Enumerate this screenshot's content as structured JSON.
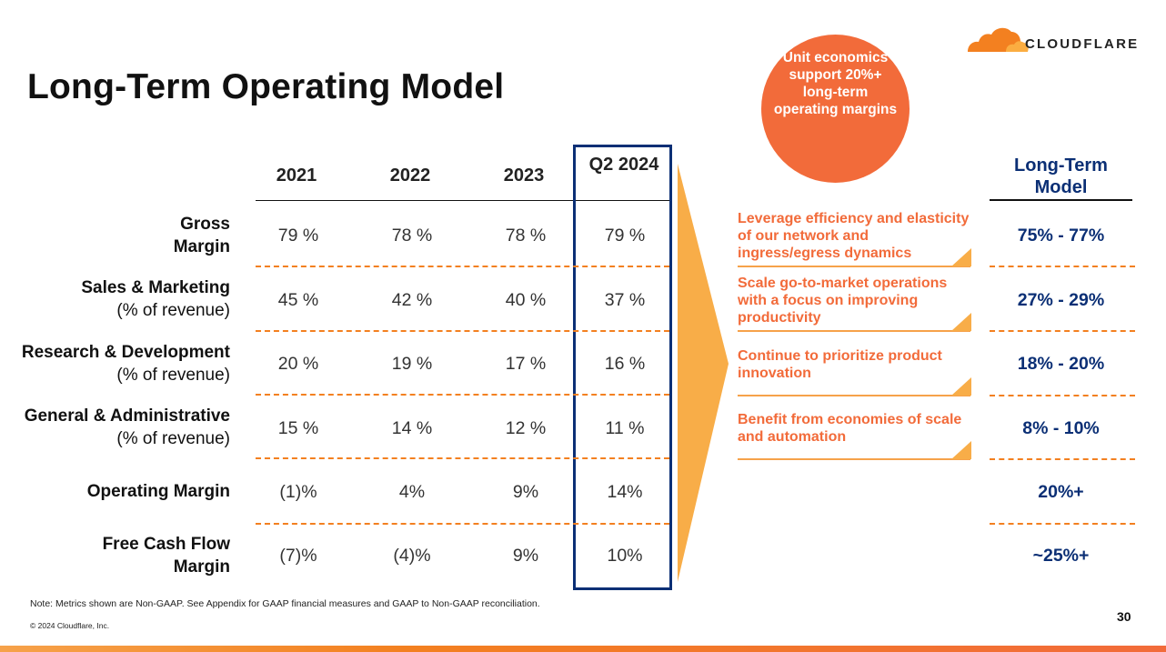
{
  "title": "Long-Term Operating Model",
  "logo": {
    "text": "CLOUDFLARE",
    "icon": "cloud-icon"
  },
  "callout": "Unit economics support 20%+ long-term operating margins",
  "table": {
    "columns": [
      "2021",
      "2022",
      "2023",
      "Q2 2024"
    ],
    "rows": [
      {
        "label": "Gross Margin",
        "sublabel": "",
        "values": [
          "79 %",
          "78 %",
          "78 %",
          "79 %"
        ],
        "long_term": "75% - 77%"
      },
      {
        "label": "Sales & Marketing",
        "sublabel": "(% of revenue)",
        "values": [
          "45 %",
          "42 %",
          "40 %",
          "37 %"
        ],
        "long_term": "27% - 29%"
      },
      {
        "label": "Research & Development",
        "sublabel": "(% of revenue)",
        "values": [
          "20 %",
          "19 %",
          "17 %",
          "16 %"
        ],
        "long_term": "18% - 20%"
      },
      {
        "label": "General & Administrative",
        "sublabel": "(% of revenue)",
        "values": [
          "15 %",
          "14 %",
          "12 %",
          "11 %"
        ],
        "long_term": "8% - 10%"
      },
      {
        "label": "Operating Margin",
        "sublabel": "",
        "values": [
          "(1)%",
          "4%",
          "9%",
          "14%"
        ],
        "long_term": "20%+"
      },
      {
        "label": "Free Cash Flow Margin",
        "sublabel": "",
        "values": [
          "(7)%",
          "(4)%",
          "9%",
          "10%"
        ],
        "long_term": "~25%+"
      }
    ]
  },
  "long_term_header": "Long-Term Model",
  "drivers": [
    "Leverage efficiency and elasticity of our network and ingress/egress dynamics",
    "Scale go-to-market operations with a focus on improving productivity",
    "Continue to prioritize product innovation",
    "Benefit from economies of scale and automation"
  ],
  "note": "Note: Metrics shown are Non-GAAP. See Appendix for GAAP financial measures and GAAP to Non-GAAP reconciliation.",
  "copyright": "© 2024 Cloudflare, Inc.",
  "page_number": "30",
  "colors": {
    "orange": "#f38020",
    "accent_orange": "#f26b3a",
    "navy": "#0b2f75",
    "arrow": "#f8ad48"
  }
}
